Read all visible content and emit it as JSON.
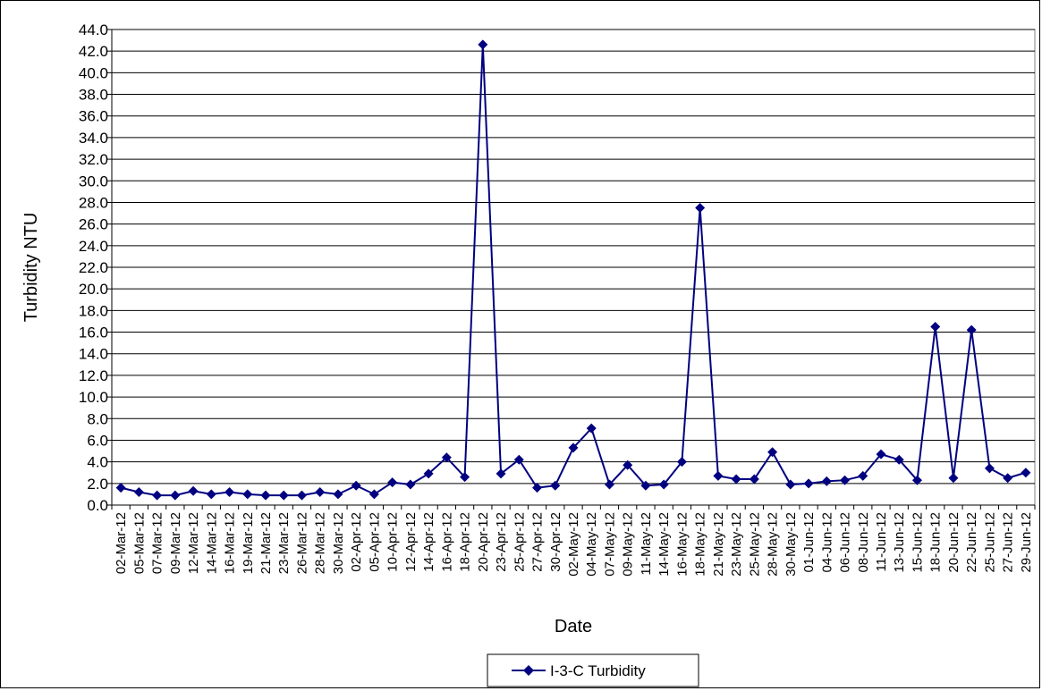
{
  "chart_data": {
    "type": "line",
    "title": "",
    "xlabel": "Date",
    "ylabel": "Turbidity NTU",
    "ylim": [
      0,
      44
    ],
    "y_tick_step": 2,
    "y_tick_labels": [
      "0.0",
      "2.0",
      "4.0",
      "6.0",
      "8.0",
      "10.0",
      "12.0",
      "14.0",
      "16.0",
      "18.0",
      "20.0",
      "22.0",
      "24.0",
      "26.0",
      "28.0",
      "30.0",
      "32.0",
      "34.0",
      "36.0",
      "38.0",
      "40.0",
      "42.0",
      "44.0"
    ],
    "grid": true,
    "legend_position": "bottom-center",
    "colors": {
      "series": "#000080",
      "grid": "#000000",
      "plot_border": "#808080"
    },
    "categories": [
      "02-Mar-12",
      "05-Mar-12",
      "07-Mar-12",
      "09-Mar-12",
      "12-Mar-12",
      "14-Mar-12",
      "16-Mar-12",
      "19-Mar-12",
      "21-Mar-12",
      "23-Mar-12",
      "26-Mar-12",
      "28-Mar-12",
      "30-Mar-12",
      "02-Apr-12",
      "05-Apr-12",
      "10-Apr-12",
      "12-Apr-12",
      "14-Apr-12",
      "16-Apr-12",
      "18-Apr-12",
      "20-Apr-12",
      "23-Apr-12",
      "25-Apr-12",
      "27-Apr-12",
      "30-Apr-12",
      "02-May-12",
      "04-May-12",
      "07-May-12",
      "09-May-12",
      "11-May-12",
      "14-May-12",
      "16-May-12",
      "18-May-12",
      "21-May-12",
      "23-May-12",
      "25-May-12",
      "28-May-12",
      "30-May-12",
      "01-Jun-12",
      "04-Jun-12",
      "06-Jun-12",
      "08-Jun-12",
      "11-Jun-12",
      "13-Jun-12",
      "15-Jun-12",
      "18-Jun-12",
      "20-Jun-12",
      "22-Jun-12",
      "25-Jun-12",
      "27-Jun-12",
      "29-Jun-12"
    ],
    "series": [
      {
        "name": "I-3-C Turbidity",
        "values": [
          1.6,
          1.2,
          0.9,
          0.9,
          1.3,
          1.0,
          1.2,
          1.0,
          0.9,
          0.9,
          0.9,
          1.2,
          1.0,
          1.8,
          1.0,
          2.1,
          1.9,
          2.9,
          4.4,
          2.6,
          42.6,
          2.9,
          4.2,
          1.6,
          1.8,
          5.3,
          7.1,
          1.9,
          3.7,
          1.8,
          1.9,
          4.0,
          27.5,
          2.7,
          2.4,
          2.4,
          4.9,
          1.9,
          2.0,
          2.2,
          2.3,
          2.7,
          4.7,
          4.2,
          2.3,
          16.5,
          2.5,
          16.2,
          3.4,
          2.5,
          3.0
        ]
      }
    ]
  }
}
